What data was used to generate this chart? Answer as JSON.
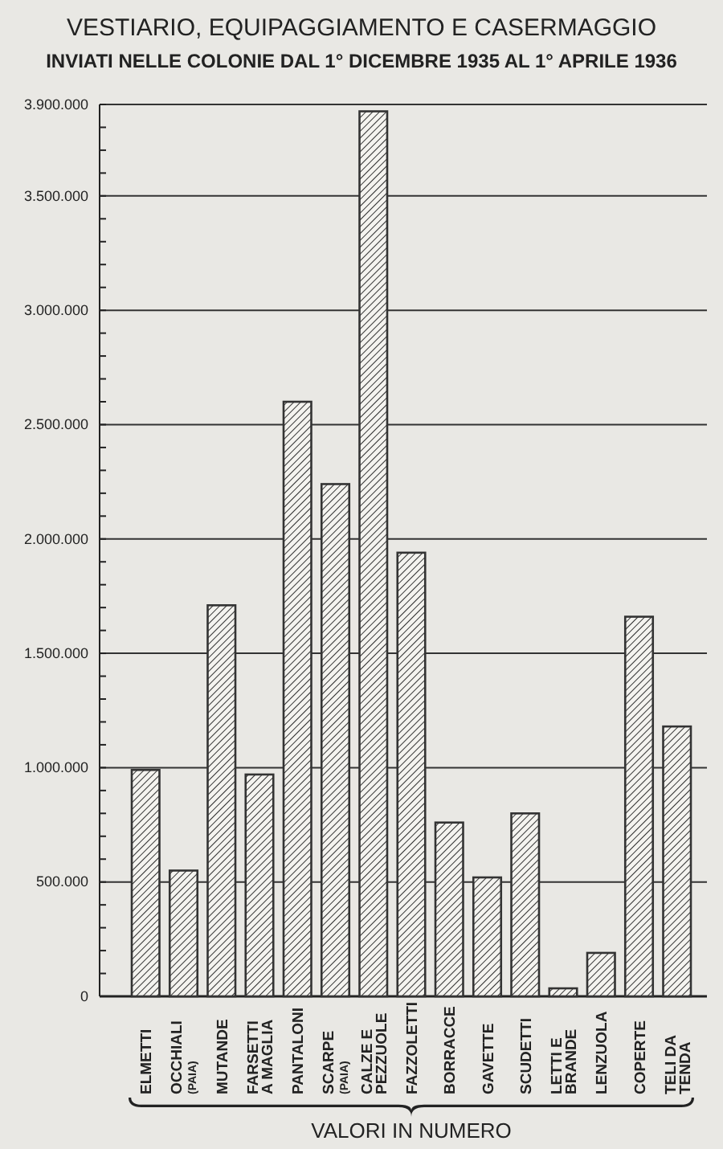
{
  "chart_data": {
    "type": "bar",
    "title": "VESTIARIO, EQUIPAGGIAMENTO E CASERMAGGIO",
    "subtitle": "INVIATI NELLE COLONIE DAL 1° DICEMBRE 1935 AL 1° APRILE 1936",
    "xlabel": "VALORI IN NUMERO",
    "categories": [
      "ELMETTI",
      "OCCHIALI (PAIA)",
      "MUTANDE",
      "FARSETTI A MAGLIA",
      "PANTALONI",
      "SCARPE (PAIA)",
      "CALZE E PEZZUOLE",
      "FAZZOLETTI",
      "BORRACCE",
      "GAVETTE",
      "SCUDETTI",
      "LETTI E BRANDE",
      "LENZUOLA",
      "COPERTE",
      "TELI DA TENDA"
    ],
    "values": [
      990000,
      550000,
      1710000,
      970000,
      2600000,
      2240000,
      3870000,
      1940000,
      760000,
      520000,
      800000,
      35000,
      190000,
      1660000,
      1180000
    ],
    "color": "#333333",
    "ylim": [
      0,
      3900000
    ],
    "yticks": [
      {
        "value": 0,
        "label": "0"
      },
      {
        "value": 100000,
        "label": null
      },
      {
        "value": 200000,
        "label": null
      },
      {
        "value": 300000,
        "label": null
      },
      {
        "value": 400000,
        "label": null
      },
      {
        "value": 500000,
        "label": "500.000"
      },
      {
        "value": 600000,
        "label": null
      },
      {
        "value": 700000,
        "label": null
      },
      {
        "value": 800000,
        "label": null
      },
      {
        "value": 900000,
        "label": null
      },
      {
        "value": 1000000,
        "label": "1.000.000"
      },
      {
        "value": 1100000,
        "label": null
      },
      {
        "value": 1200000,
        "label": null
      },
      {
        "value": 1300000,
        "label": null
      },
      {
        "value": 1400000,
        "label": null
      },
      {
        "value": 1500000,
        "label": "1.500.000"
      },
      {
        "value": 1600000,
        "label": null
      },
      {
        "value": 1700000,
        "label": null
      },
      {
        "value": 1800000,
        "label": null
      },
      {
        "value": 1900000,
        "label": null
      },
      {
        "value": 2000000,
        "label": "2.000.000"
      },
      {
        "value": 2100000,
        "label": null
      },
      {
        "value": 2200000,
        "label": null
      },
      {
        "value": 2300000,
        "label": null
      },
      {
        "value": 2400000,
        "label": null
      },
      {
        "value": 2500000,
        "label": "2.500.000"
      },
      {
        "value": 2600000,
        "label": null
      },
      {
        "value": 2700000,
        "label": null
      },
      {
        "value": 2800000,
        "label": null
      },
      {
        "value": 2900000,
        "label": null
      },
      {
        "value": 3000000,
        "label": "3.000.000"
      },
      {
        "value": 3100000,
        "label": null
      },
      {
        "value": 3200000,
        "label": null
      },
      {
        "value": 3300000,
        "label": null
      },
      {
        "value": 3400000,
        "label": null
      },
      {
        "value": 3500000,
        "label": "3.500.000"
      },
      {
        "value": 3600000,
        "label": null
      },
      {
        "value": 3700000,
        "label": null
      },
      {
        "value": 3800000,
        "label": null
      },
      {
        "value": 3900000,
        "label": "3.900.000"
      }
    ],
    "grid": "y"
  }
}
